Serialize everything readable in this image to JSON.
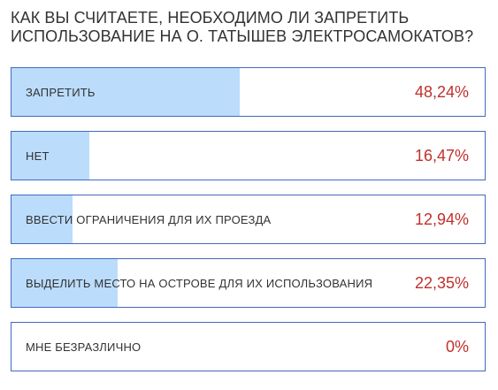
{
  "poll": {
    "question": "КАК ВЫ СЧИТАЕТЕ, НЕОБХОДИМО ЛИ ЗАПРЕТИТЬ ИСПОЛЬЗОВАНИЕ НА О. ТАТЫШЕВ ЭЛЕКТРОСАМОКАТОВ?",
    "colors": {
      "border": "#3f6bbf",
      "fill": "#bbdcfb",
      "percent_text": "#c0302c"
    },
    "options": [
      {
        "label": "ЗАПРЕТИТЬ",
        "percent_text": "48,24%",
        "share": 0.4824
      },
      {
        "label": "НЕТ",
        "percent_text": "16,47%",
        "share": 0.1647
      },
      {
        "label": "ВВЕСТИ ОГРАНИЧЕНИЯ ДЛЯ ИХ ПРОЕЗДА",
        "percent_text": "12,94%",
        "share": 0.1294
      },
      {
        "label": "ВЫДЕЛИТЬ МЕСТО НА ОСТРОВЕ ДЛЯ ИХ ИСПОЛЬЗОВАНИЯ",
        "percent_text": "22,35%",
        "share": 0.2235
      },
      {
        "label": "МНЕ БЕЗРАЗЛИЧНО",
        "percent_text": "0%",
        "share": 0
      }
    ]
  }
}
